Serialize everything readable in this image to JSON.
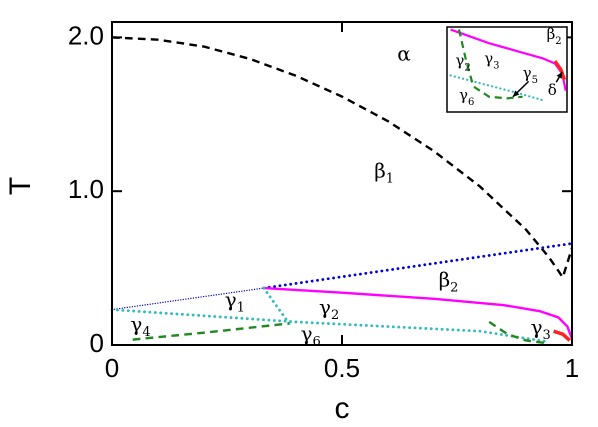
{
  "chart_data": {
    "type": "line",
    "title": "",
    "xlabel": "c",
    "ylabel": "T",
    "xlim": [
      0,
      1
    ],
    "ylim": [
      0,
      2.1
    ],
    "x_ticks": [
      {
        "value": 0,
        "label": "0"
      },
      {
        "value": 0.5,
        "label": "0.5"
      },
      {
        "value": 1,
        "label": "1"
      }
    ],
    "y_ticks": [
      {
        "value": 0,
        "label": "0"
      },
      {
        "value": 1.0,
        "label": "1.0"
      },
      {
        "value": 2.0,
        "label": "2.0"
      }
    ],
    "grid": false,
    "series": [
      {
        "color": "#000000",
        "style": "dashed",
        "width": 2.4,
        "points": [
          [
            0,
            2.0
          ],
          [
            0.1,
            1.985
          ],
          [
            0.2,
            1.94
          ],
          [
            0.3,
            1.86
          ],
          [
            0.4,
            1.75
          ],
          [
            0.5,
            1.615
          ],
          [
            0.6,
            1.455
          ],
          [
            0.7,
            1.26
          ],
          [
            0.8,
            1.03
          ],
          [
            0.9,
            0.75
          ],
          [
            0.95,
            0.57
          ],
          [
            0.98,
            0.44
          ],
          [
            1.0,
            0.63
          ]
        ]
      },
      {
        "color": "#0000dd",
        "style": "dotted",
        "width": 2.8,
        "points": [
          [
            0.33,
            0.37
          ],
          [
            1.0,
            0.66
          ]
        ]
      },
      {
        "color": "#0000dd",
        "style": "dotted",
        "width": 1.3,
        "points": [
          [
            0,
            0.23
          ],
          [
            0.33,
            0.37
          ]
        ]
      },
      {
        "color": "#ff00ff",
        "style": "solid",
        "width": 2.4,
        "points": [
          [
            0.33,
            0.37
          ],
          [
            0.5,
            0.34
          ],
          [
            0.7,
            0.3
          ],
          [
            0.85,
            0.26
          ],
          [
            0.93,
            0.22
          ],
          [
            0.97,
            0.18
          ],
          [
            0.99,
            0.12
          ],
          [
            1.0,
            0.04
          ]
        ]
      },
      {
        "color": "#ff2222",
        "style": "solid",
        "width": 3.5,
        "points": [
          [
            0.96,
            0.09
          ],
          [
            0.98,
            0.07
          ],
          [
            0.995,
            0.03
          ]
        ]
      },
      {
        "color": "#33bbbb",
        "style": "dotted",
        "width": 2.8,
        "points": [
          [
            0,
            0.23
          ],
          [
            0.2,
            0.19
          ],
          [
            0.4,
            0.15
          ],
          [
            0.6,
            0.12
          ],
          [
            0.8,
            0.09
          ],
          [
            0.95,
            0.02
          ]
        ]
      },
      {
        "color": "#33bbbb",
        "style": "dotted",
        "width": 2.8,
        "points": [
          [
            0.33,
            0.37
          ],
          [
            0.385,
            0.14
          ]
        ]
      },
      {
        "color": "#228822",
        "style": "dashed",
        "width": 2.4,
        "points": [
          [
            0.045,
            0.035
          ],
          [
            0.2,
            0.08
          ],
          [
            0.385,
            0.14
          ]
        ]
      },
      {
        "color": "#228822",
        "style": "dashed",
        "width": 2.4,
        "points": [
          [
            0.82,
            0.15
          ],
          [
            0.86,
            0.07
          ],
          [
            0.9,
            0.03
          ],
          [
            0.95,
            0.01
          ]
        ]
      }
    ],
    "annotations": [
      {
        "symbol": "α",
        "sub": "",
        "x": 0.62,
        "y": 1.85
      },
      {
        "symbol": "β",
        "sub": "1",
        "x": 0.57,
        "y": 1.09
      },
      {
        "symbol": "β",
        "sub": "2",
        "x": 0.71,
        "y": 0.38
      },
      {
        "symbol": "γ",
        "sub": "1",
        "x": 0.245,
        "y": 0.25
      },
      {
        "symbol": "γ",
        "sub": "2",
        "x": 0.45,
        "y": 0.2
      },
      {
        "symbol": "γ",
        "sub": "3",
        "x": 0.91,
        "y": 0.07
      },
      {
        "symbol": "γ",
        "sub": "4",
        "x": 0.04,
        "y": 0.09
      },
      {
        "symbol": "γ",
        "sub": "6",
        "x": 0.41,
        "y": 0.03
      }
    ],
    "inset": {
      "xlim": [
        0,
        1
      ],
      "ylim": [
        0,
        1
      ],
      "series": [
        {
          "color": "#ff00ff",
          "style": "solid",
          "width": 2.2,
          "points": [
            [
              0.03,
              0.97
            ],
            [
              0.35,
              0.81
            ],
            [
              0.6,
              0.71
            ],
            [
              0.8,
              0.63
            ],
            [
              0.9,
              0.57
            ],
            [
              0.96,
              0.45
            ],
            [
              0.99,
              0.25
            ]
          ]
        },
        {
          "color": "#ff2222",
          "style": "solid",
          "width": 3.2,
          "points": [
            [
              0.9,
              0.6
            ],
            [
              0.95,
              0.5
            ],
            [
              0.98,
              0.38
            ]
          ]
        },
        {
          "color": "#33bbbb",
          "style": "dotted",
          "width": 2.2,
          "points": [
            [
              0.03,
              0.43
            ],
            [
              0.3,
              0.33
            ],
            [
              0.6,
              0.22
            ],
            [
              0.82,
              0.13
            ]
          ]
        },
        {
          "color": "#228822",
          "style": "dashed",
          "width": 2.2,
          "points": [
            [
              0.1,
              0.97
            ],
            [
              0.16,
              0.6
            ],
            [
              0.22,
              0.3
            ],
            [
              0.35,
              0.18
            ],
            [
              0.5,
              0.16
            ],
            [
              0.63,
              0.18
            ]
          ]
        }
      ],
      "arrows": [
        {
          "from": [
            0.68,
            0.36
          ],
          "to": [
            0.55,
            0.18
          ]
        },
        {
          "from": [
            0.91,
            0.35
          ],
          "to": [
            0.96,
            0.47
          ]
        }
      ],
      "annotations": [
        {
          "symbol": "β",
          "sub": "2",
          "x": 0.83,
          "y": 0.86
        },
        {
          "symbol": "γ",
          "sub": "2",
          "x": 0.07,
          "y": 0.55
        },
        {
          "symbol": "γ",
          "sub": "3",
          "x": 0.31,
          "y": 0.57
        },
        {
          "symbol": "γ",
          "sub": "5",
          "x": 0.63,
          "y": 0.4
        },
        {
          "symbol": "γ",
          "sub": "6",
          "x": 0.1,
          "y": 0.14
        },
        {
          "symbol": "δ",
          "sub": "",
          "x": 0.84,
          "y": 0.2
        }
      ]
    }
  }
}
